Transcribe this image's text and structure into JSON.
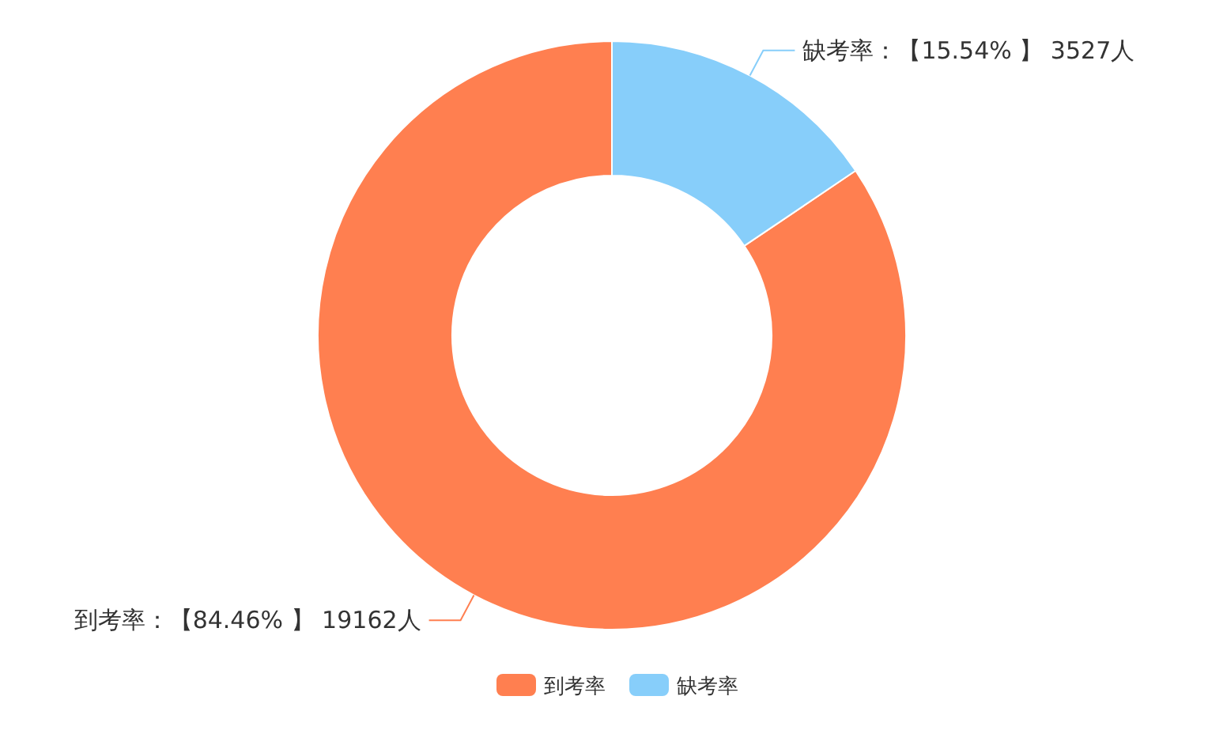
{
  "chart_data": {
    "type": "donut",
    "categories": [
      "到考率",
      "缺考率"
    ],
    "values": [
      19162,
      3527
    ],
    "colors": [
      "#ff7f50",
      "#87cefa"
    ],
    "value_labels": [
      "到考率：【84.46% 】 19162人",
      "缺考率：【15.54% 】 3527人"
    ],
    "legend": "bottom"
  }
}
